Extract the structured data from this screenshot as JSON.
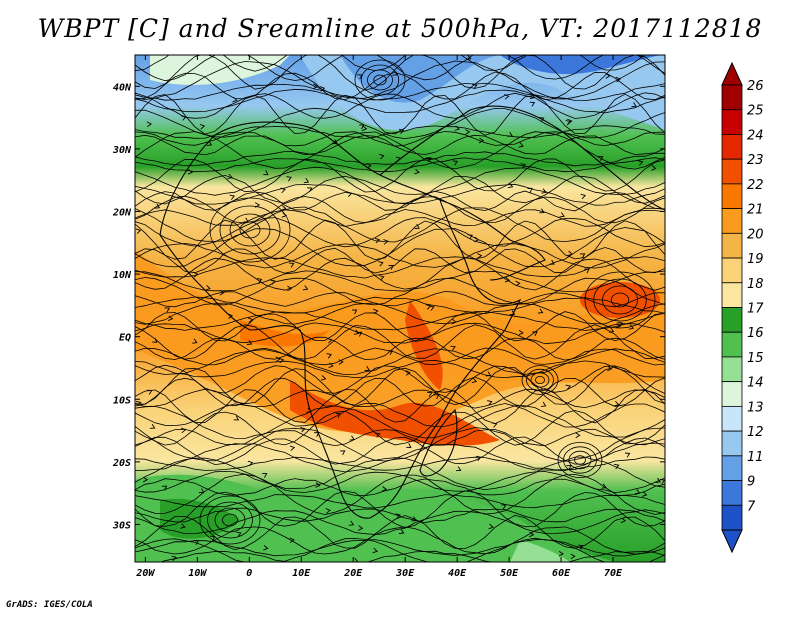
{
  "title": "WBPT [C] and Sreamline at 500hPa, VT: 2017112818",
  "footer": "GrADS: IGES/COLA",
  "map": {
    "lon_range": [
      -22,
      80
    ],
    "lat_range": [
      -36,
      45
    ],
    "lon_ticks": [
      {
        "lon": -20,
        "label": "20W"
      },
      {
        "lon": -10,
        "label": "10W"
      },
      {
        "lon": 0,
        "label": "0"
      },
      {
        "lon": 10,
        "label": "10E"
      },
      {
        "lon": 20,
        "label": "20E"
      },
      {
        "lon": 30,
        "label": "30E"
      },
      {
        "lon": 40,
        "label": "40E"
      },
      {
        "lon": 50,
        "label": "50E"
      },
      {
        "lon": 60,
        "label": "60E"
      },
      {
        "lon": 70,
        "label": "70E"
      }
    ],
    "lat_ticks": [
      {
        "lat": 40,
        "label": "40N"
      },
      {
        "lat": 30,
        "label": "30N"
      },
      {
        "lat": 20,
        "label": "20N"
      },
      {
        "lat": 10,
        "label": "10N"
      },
      {
        "lat": 0,
        "label": "EQ"
      },
      {
        "lat": -10,
        "label": "10S"
      },
      {
        "lat": -20,
        "label": "20S"
      },
      {
        "lat": -30,
        "label": "30S"
      }
    ]
  },
  "colorbar": {
    "levels": [
      {
        "label": "26",
        "color": "#a00000"
      },
      {
        "label": "25",
        "color": "#c80000"
      },
      {
        "label": "24",
        "color": "#e62800"
      },
      {
        "label": "23",
        "color": "#f05000"
      },
      {
        "label": "22",
        "color": "#fa7800"
      },
      {
        "label": "21",
        "color": "#fa9a1e"
      },
      {
        "label": "20",
        "color": "#f5b446"
      },
      {
        "label": "19",
        "color": "#fad278"
      },
      {
        "label": "18",
        "color": "#fae6a0"
      },
      {
        "label": "17",
        "color": "#28a028"
      },
      {
        "label": "16",
        "color": "#50c050"
      },
      {
        "label": "15",
        "color": "#96e096"
      },
      {
        "label": "14",
        "color": "#dcf5dc"
      },
      {
        "label": "13",
        "color": "#c8e6fa"
      },
      {
        "label": "12",
        "color": "#96c8f0"
      },
      {
        "label": "11",
        "color": "#64a0e6"
      },
      {
        "label": "9",
        "color": "#3c78dc"
      },
      {
        "label": "7",
        "color": "#1e50c8"
      }
    ],
    "min_color": "#1e50c8"
  }
}
